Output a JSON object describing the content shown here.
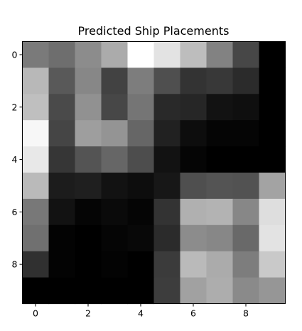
{
  "chart_data": {
    "type": "heatmap",
    "title": "Predicted Ship Placements",
    "xlabel": "",
    "ylabel": "",
    "colormap": "gray",
    "rows": 10,
    "cols": 10,
    "xlim": [
      -0.5,
      9.5
    ],
    "ylim": [
      9.5,
      -0.5
    ],
    "x_ticks": [
      0,
      2,
      4,
      6,
      8
    ],
    "y_ticks": [
      0,
      2,
      4,
      6,
      8
    ],
    "grid": false,
    "legend": "none",
    "values": [
      [
        0.48,
        0.43,
        0.55,
        0.67,
        1.0,
        0.89,
        0.74,
        0.51,
        0.28,
        0.0
      ],
      [
        0.72,
        0.35,
        0.53,
        0.26,
        0.49,
        0.31,
        0.2,
        0.22,
        0.17,
        0.0
      ],
      [
        0.75,
        0.29,
        0.57,
        0.28,
        0.46,
        0.16,
        0.15,
        0.07,
        0.06,
        0.0
      ],
      [
        0.97,
        0.27,
        0.62,
        0.58,
        0.4,
        0.13,
        0.05,
        0.02,
        0.02,
        0.0
      ],
      [
        0.91,
        0.21,
        0.33,
        0.4,
        0.3,
        0.07,
        0.02,
        0.0,
        0.0,
        0.0
      ],
      [
        0.73,
        0.11,
        0.12,
        0.07,
        0.05,
        0.09,
        0.31,
        0.33,
        0.32,
        0.64
      ],
      [
        0.47,
        0.07,
        0.02,
        0.04,
        0.02,
        0.2,
        0.69,
        0.7,
        0.53,
        0.87
      ],
      [
        0.44,
        0.01,
        0.0,
        0.02,
        0.03,
        0.17,
        0.55,
        0.53,
        0.41,
        0.89
      ],
      [
        0.19,
        0.01,
        0.0,
        0.01,
        0.0,
        0.23,
        0.73,
        0.67,
        0.49,
        0.79
      ],
      [
        0.0,
        0.0,
        0.0,
        0.0,
        0.0,
        0.24,
        0.63,
        0.68,
        0.54,
        0.59
      ]
    ]
  }
}
